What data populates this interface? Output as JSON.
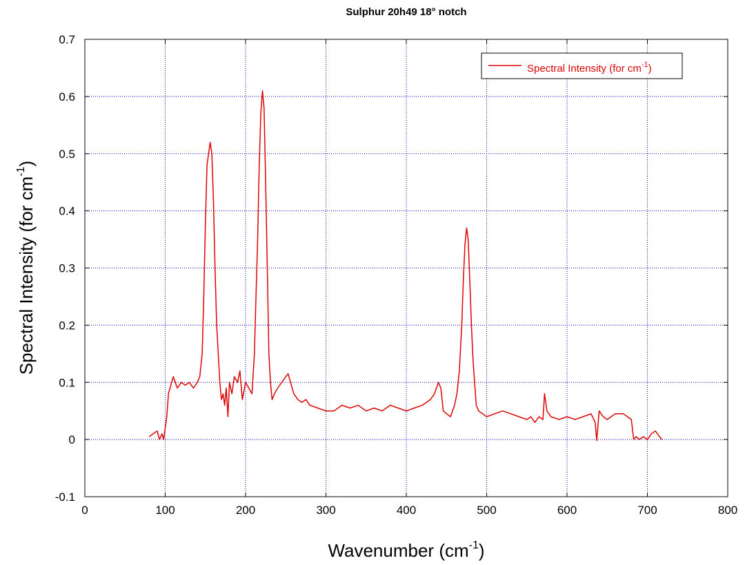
{
  "chart_data": {
    "type": "line",
    "title": "Sulphur 20h49 18° notch",
    "xlabel": {
      "main": "Wavenumber (cm",
      "sup": "-1",
      "close": ")"
    },
    "ylabel": {
      "main": "Spectral Intensity (for cm",
      "sup": "-1",
      "close": ")"
    },
    "xlim": [
      0,
      800
    ],
    "ylim": [
      -0.1,
      0.7
    ],
    "xticks": [
      0,
      100,
      200,
      300,
      400,
      500,
      600,
      700,
      800
    ],
    "yticks": [
      -0.1,
      0,
      0.1,
      0.2,
      0.3,
      0.4,
      0.5,
      0.6,
      0.7
    ],
    "xtick_labels": [
      "0",
      "100",
      "200",
      "300",
      "400",
      "500",
      "600",
      "700",
      "800"
    ],
    "ytick_labels": [
      "-0.1",
      "0",
      "0.1",
      "0.2",
      "0.3",
      "0.4",
      "0.5",
      "0.6",
      "0.7"
    ],
    "grid": true,
    "grid_style": "dotted",
    "grid_color": "#0000cc",
    "legend_position": "top-right",
    "series": [
      {
        "name": {
          "main": "Spectral Intensity (for cm",
          "sup": "-1",
          "close": ")"
        },
        "color": "#dd0000",
        "x": [
          80,
          85,
          90,
          93,
          96,
          98,
          100,
          102,
          104,
          106,
          108,
          110,
          115,
          120,
          125,
          130,
          135,
          140,
          143,
          146,
          148,
          150,
          152,
          154,
          156,
          158,
          160,
          162,
          164,
          166,
          168,
          170,
          172,
          174,
          176,
          178,
          180,
          183,
          186,
          190,
          193,
          196,
          200,
          204,
          208,
          211,
          213,
          215,
          217,
          219,
          221,
          223,
          225,
          227,
          229,
          231,
          233,
          236,
          240,
          245,
          250,
          253,
          256,
          260,
          265,
          270,
          275,
          280,
          290,
          300,
          310,
          320,
          330,
          340,
          350,
          360,
          370,
          380,
          390,
          400,
          410,
          420,
          430,
          435,
          440,
          443,
          446,
          450,
          455,
          460,
          463,
          466,
          469,
          471,
          473,
          475,
          477,
          479,
          481,
          483,
          485,
          487,
          490,
          495,
          500,
          510,
          520,
          530,
          540,
          550,
          555,
          560,
          565,
          570,
          572,
          575,
          580,
          590,
          600,
          610,
          620,
          630,
          635,
          637,
          640,
          645,
          650,
          660,
          670,
          675,
          680,
          683,
          686,
          690,
          695,
          700,
          705,
          710,
          715,
          718
        ],
        "values": [
          0.005,
          0.01,
          0.015,
          0.0,
          0.01,
          0.0,
          0.02,
          0.04,
          0.08,
          0.09,
          0.1,
          0.11,
          0.09,
          0.1,
          0.095,
          0.1,
          0.09,
          0.1,
          0.11,
          0.15,
          0.25,
          0.38,
          0.48,
          0.5,
          0.52,
          0.5,
          0.42,
          0.3,
          0.2,
          0.15,
          0.1,
          0.07,
          0.08,
          0.06,
          0.09,
          0.04,
          0.1,
          0.08,
          0.11,
          0.1,
          0.12,
          0.07,
          0.1,
          0.09,
          0.08,
          0.15,
          0.25,
          0.35,
          0.48,
          0.57,
          0.61,
          0.58,
          0.45,
          0.3,
          0.15,
          0.1,
          0.07,
          0.08,
          0.09,
          0.1,
          0.11,
          0.115,
          0.1,
          0.08,
          0.07,
          0.065,
          0.07,
          0.06,
          0.055,
          0.05,
          0.05,
          0.06,
          0.055,
          0.06,
          0.05,
          0.055,
          0.05,
          0.06,
          0.055,
          0.05,
          0.055,
          0.06,
          0.07,
          0.08,
          0.1,
          0.09,
          0.05,
          0.045,
          0.04,
          0.06,
          0.08,
          0.12,
          0.2,
          0.28,
          0.34,
          0.37,
          0.35,
          0.28,
          0.2,
          0.14,
          0.1,
          0.06,
          0.05,
          0.045,
          0.04,
          0.045,
          0.05,
          0.045,
          0.04,
          0.035,
          0.04,
          0.03,
          0.04,
          0.035,
          0.08,
          0.05,
          0.04,
          0.035,
          0.04,
          0.035,
          0.04,
          0.045,
          0.03,
          -0.002,
          0.05,
          0.04,
          0.035,
          0.045,
          0.045,
          0.04,
          0.035,
          0.0,
          0.005,
          0.0,
          0.005,
          0.0,
          0.01,
          0.015,
          0.005,
          0.0
        ]
      }
    ]
  }
}
